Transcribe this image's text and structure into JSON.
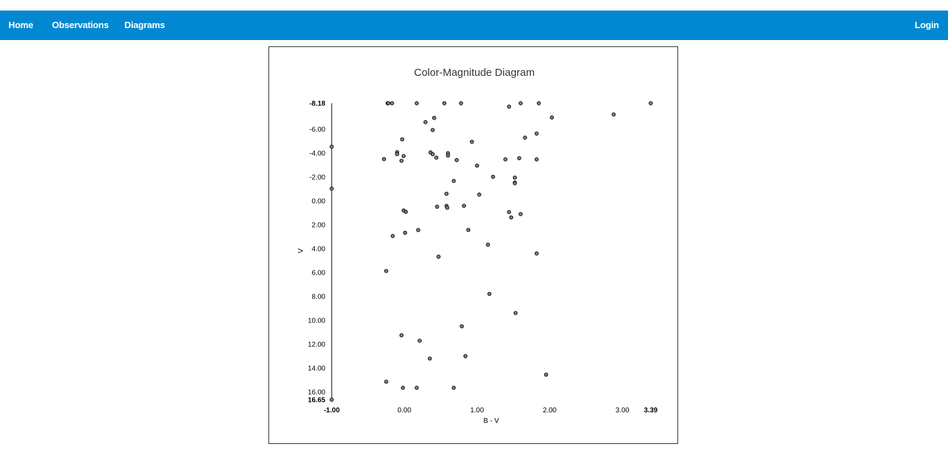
{
  "nav": {
    "home": "Home",
    "observations": "Observations",
    "diagrams": "Diagrams",
    "login": "Login"
  },
  "colors": {
    "nav_bg": "#0288d1",
    "point_fill": "#808080",
    "point_stroke": "#000000"
  },
  "chart_data": {
    "type": "scatter",
    "title": "Color-Magnitude Diagram",
    "xlabel": "B - V",
    "ylabel": "V",
    "xlim": [
      -1.0,
      3.39
    ],
    "ylim": [
      -8.18,
      16.65
    ],
    "y_inverted": true,
    "x_ticks": [
      -1.0,
      0.0,
      1.0,
      2.0,
      3.0,
      3.39
    ],
    "x_tick_labels": [
      "-1.00",
      "0.00",
      "1.00",
      "2.00",
      "3.00",
      "3.39"
    ],
    "y_ticks": [
      -8.18,
      -6.0,
      -4.0,
      -2.0,
      0.0,
      2.0,
      4.0,
      6.0,
      8.0,
      10.0,
      12.0,
      14.0,
      16.0,
      16.65
    ],
    "y_tick_labels": [
      "-8.18",
      "-6.00",
      "-4.00",
      "-2.00",
      "0.00",
      "2.00",
      "4.00",
      "6.00",
      "8.00",
      "10.00",
      "12.00",
      "14.00",
      "16.00",
      "16.65"
    ],
    "bold_ticks": [
      "-8.18",
      "16.65",
      "-1.00",
      "3.39"
    ],
    "grid": false,
    "points": [
      {
        "x": -0.23,
        "y": -8.18
      },
      {
        "x": -0.22,
        "y": -8.18
      },
      {
        "x": -0.17,
        "y": -8.18
      },
      {
        "x": 0.17,
        "y": -8.18
      },
      {
        "x": 0.55,
        "y": -8.18
      },
      {
        "x": 0.78,
        "y": -8.18
      },
      {
        "x": 1.6,
        "y": -8.18
      },
      {
        "x": 1.85,
        "y": -8.18
      },
      {
        "x": 3.39,
        "y": -8.18
      },
      {
        "x": 1.44,
        "y": -7.9
      },
      {
        "x": 2.88,
        "y": -7.24
      },
      {
        "x": 2.03,
        "y": -6.99
      },
      {
        "x": 0.41,
        "y": -6.95
      },
      {
        "x": 0.29,
        "y": -6.6
      },
      {
        "x": 0.39,
        "y": -5.94
      },
      {
        "x": 1.82,
        "y": -5.64
      },
      {
        "x": 1.66,
        "y": -5.3
      },
      {
        "x": -0.03,
        "y": -5.16
      },
      {
        "x": 0.93,
        "y": -4.95
      },
      {
        "x": -1.0,
        "y": -4.54
      },
      {
        "x": -0.1,
        "y": -4.08
      },
      {
        "x": 0.36,
        "y": -4.06
      },
      {
        "x": 0.6,
        "y": -4.0
      },
      {
        "x": -0.1,
        "y": -3.92
      },
      {
        "x": 0.39,
        "y": -3.91
      },
      {
        "x": 0.6,
        "y": -3.8
      },
      {
        "x": -0.01,
        "y": -3.76
      },
      {
        "x": 0.44,
        "y": -3.63
      },
      {
        "x": 1.58,
        "y": -3.58
      },
      {
        "x": -0.28,
        "y": -3.5
      },
      {
        "x": 1.39,
        "y": -3.48
      },
      {
        "x": 1.82,
        "y": -3.48
      },
      {
        "x": 0.72,
        "y": -3.42
      },
      {
        "x": -0.04,
        "y": -3.36
      },
      {
        "x": 1.0,
        "y": -2.96
      },
      {
        "x": 1.22,
        "y": -2.02
      },
      {
        "x": 1.52,
        "y": -1.95
      },
      {
        "x": 0.68,
        "y": -1.68
      },
      {
        "x": 1.52,
        "y": -1.53
      },
      {
        "x": 1.52,
        "y": -1.48
      },
      {
        "x": -1.0,
        "y": -1.03
      },
      {
        "x": 0.58,
        "y": -0.6
      },
      {
        "x": 1.03,
        "y": -0.53
      },
      {
        "x": 0.82,
        "y": 0.41
      },
      {
        "x": 0.58,
        "y": 0.42
      },
      {
        "x": 0.45,
        "y": 0.48
      },
      {
        "x": 0.59,
        "y": 0.57
      },
      {
        "x": -0.01,
        "y": 0.8
      },
      {
        "x": 0.02,
        "y": 0.92
      },
      {
        "x": 1.44,
        "y": 0.93
      },
      {
        "x": 1.6,
        "y": 1.1
      },
      {
        "x": 1.47,
        "y": 1.38
      },
      {
        "x": 0.19,
        "y": 2.44
      },
      {
        "x": 0.88,
        "y": 2.43
      },
      {
        "x": 0.01,
        "y": 2.67
      },
      {
        "x": -0.16,
        "y": 2.94
      },
      {
        "x": 1.15,
        "y": 3.67
      },
      {
        "x": 1.82,
        "y": 4.4
      },
      {
        "x": 0.47,
        "y": 4.67
      },
      {
        "x": -0.25,
        "y": 5.87
      },
      {
        "x": 1.17,
        "y": 7.79
      },
      {
        "x": 1.53,
        "y": 9.39
      },
      {
        "x": 0.79,
        "y": 10.5
      },
      {
        "x": -0.04,
        "y": 11.25
      },
      {
        "x": 0.21,
        "y": 11.71
      },
      {
        "x": 0.84,
        "y": 13.0
      },
      {
        "x": 0.35,
        "y": 13.2
      },
      {
        "x": 1.95,
        "y": 14.55
      },
      {
        "x": -0.25,
        "y": 15.14
      },
      {
        "x": -0.02,
        "y": 15.65
      },
      {
        "x": 0.17,
        "y": 15.65
      },
      {
        "x": 0.68,
        "y": 15.65
      },
      {
        "x": -1.0,
        "y": 16.65
      }
    ]
  }
}
